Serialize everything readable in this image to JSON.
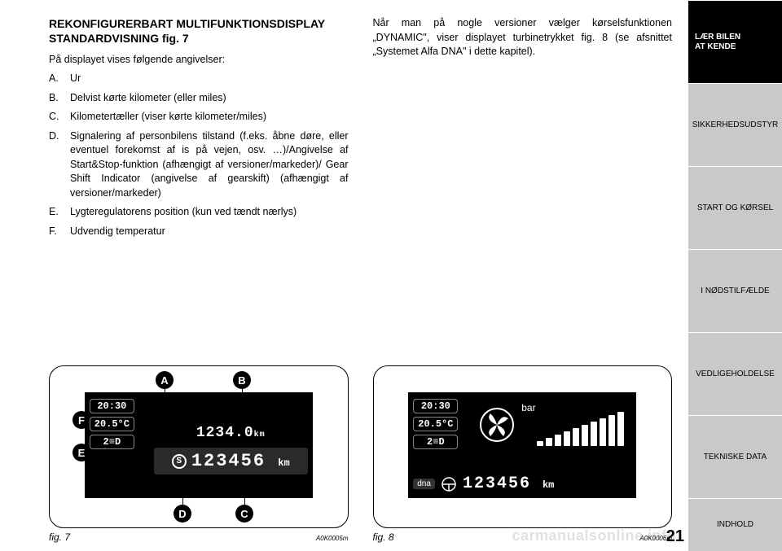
{
  "page_number": "21",
  "watermark": "carmanualsonline.info",
  "left_column": {
    "heading_line1": "REKONFIGURERBART MULTIFUNKTIONSDISPLAY",
    "heading_line2": "STANDARDVISNING fig. 7",
    "intro": "På displayet vises følgende angivelser:",
    "items": [
      {
        "letter": "A.",
        "text": "Ur"
      },
      {
        "letter": "B.",
        "text": "Delvist kørte kilometer (eller miles)"
      },
      {
        "letter": "C.",
        "text": "Kilometertæller (viser kørte kilometer/miles)"
      },
      {
        "letter": "D.",
        "text": "Signalering af personbilens tilstand (f.eks. åbne døre, eller eventuel forekomst af is på vejen, osv. …)/Angivelse af Start&Stop-funktion (afhængigt af versioner/markeder)/ Gear Shift Indicator (angivelse af gearskift) (afhængigt af versioner/markeder)"
      },
      {
        "letter": "E.",
        "text": "Lygteregulatorens position (kun ved tændt nærlys)"
      },
      {
        "letter": "F.",
        "text": "Udvendig temperatur"
      }
    ]
  },
  "right_column": {
    "paragraph": "Når man på nogle versioner vælger kørselsfunktionen „DYNAMIC\", viser displayet turbinetrykket fig. 8 (se afsnittet „Systemet Alfa DNA\" i dette kapitel)."
  },
  "sidebar": {
    "tabs": [
      "LÆR BILEN AT KENDE",
      "SIKKERHEDSUDSTYR",
      "START OG KØRSEL",
      "I NØDSTILFÆLDE",
      "VEDLIGEHOLDELSE",
      "TEKNISKE DATA",
      "INDHOLD"
    ]
  },
  "fig7": {
    "label": "fig. 7",
    "code": "A0K0005m",
    "lcd": {
      "time": "20:30",
      "temp": "20.5°C",
      "headlight": "2",
      "headlight_icon": "≡D",
      "trip": "1234.0",
      "trip_unit": "km",
      "odo": "123456",
      "odo_unit": "km",
      "s_icon": "S"
    },
    "callouts": [
      "A",
      "B",
      "C",
      "D",
      "E",
      "F"
    ]
  },
  "fig8": {
    "label": "fig. 8",
    "code": "A0K0006m",
    "lcd": {
      "time": "20:30",
      "temp": "20.5°C",
      "headlight": "2",
      "headlight_icon": "≡D",
      "bar_label": "bar",
      "dna_label": "dna",
      "odo": "123456",
      "odo_unit": "km"
    },
    "bars": [
      6,
      10,
      14,
      18,
      22,
      26,
      30,
      34,
      38,
      42
    ]
  },
  "colors": {
    "page_bg": "#ffffff",
    "text": "#000000",
    "sidebar_inactive_bg": "#c9c9c9",
    "sidebar_active_bg": "#000000",
    "lcd_bg": "#000000",
    "lcd_fg": "#ffffff"
  }
}
